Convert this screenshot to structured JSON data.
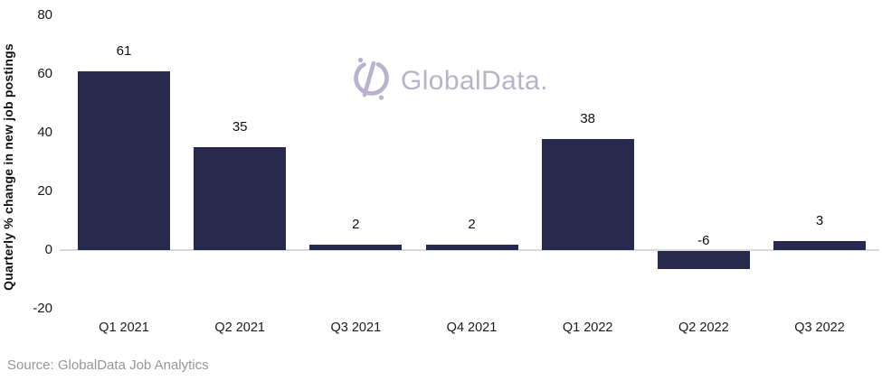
{
  "chart_data": {
    "type": "bar",
    "categories": [
      "Q1 2021",
      "Q2 2021",
      "Q3 2021",
      "Q4 2021",
      "Q1 2022",
      "Q2 2022",
      "Q3 2022"
    ],
    "values": [
      61,
      35,
      2,
      2,
      38,
      -6,
      3
    ],
    "title": "",
    "xlabel": "",
    "ylabel": "Quarterly % change in new job postings",
    "yticks": [
      80,
      60,
      40,
      20,
      0,
      -20
    ],
    "ylim": [
      -20,
      80
    ],
    "bar_color": "#272a4d",
    "grid": "zero-baseline-only",
    "legend": "none",
    "value_labels": "above-bars"
  },
  "branding": {
    "logo_text": "GlobalData.",
    "logo_color": "#bab2cb",
    "logo_icon": "globaldata-circle-slash-icon"
  },
  "footer": {
    "source": "Source: GlobalData Job Analytics"
  }
}
